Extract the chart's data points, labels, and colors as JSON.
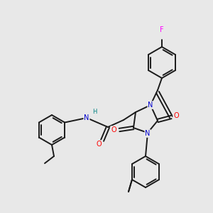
{
  "bg_color": "#e8e8e8",
  "atom_colors": {
    "N": "#0000cd",
    "O": "#ff0000",
    "F": "#ff00ff",
    "H": "#008080",
    "C": "#1a1a1a"
  },
  "bond_color": "#1a1a1a",
  "bond_width": 1.4,
  "figsize": [
    3.0,
    3.0
  ],
  "dpi": 100,
  "ring_r": 22,
  "fp_ring_r": 22
}
